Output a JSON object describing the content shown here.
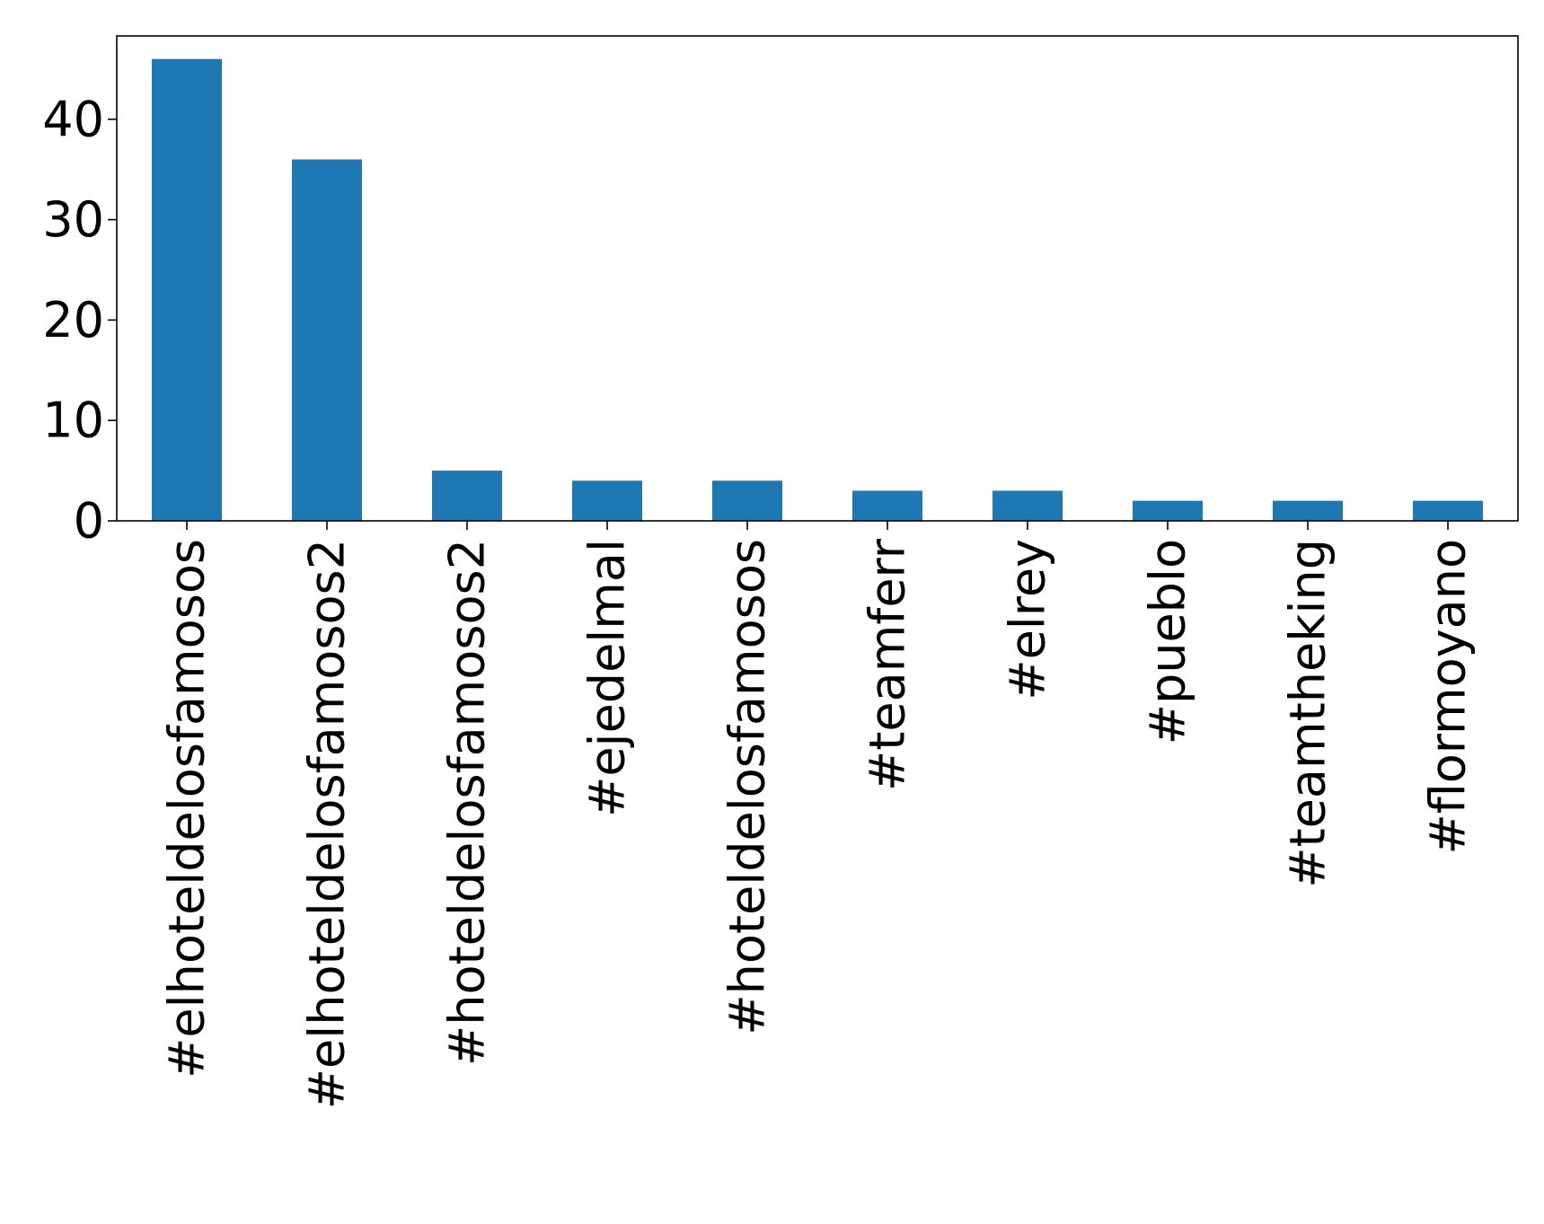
{
  "chart_data": {
    "type": "bar",
    "title": "",
    "xlabel": "",
    "ylabel": "",
    "categories": [
      "#elhoteldelosfamosos",
      "#elhoteldelosfamosos2",
      "#hoteldelosfamosos2",
      "#ejedelmal",
      "#hoteldelosfamosos",
      "#teamferr",
      "#elrey",
      "#pueblo",
      "#teamtheking",
      "#flormoyano"
    ],
    "values": [
      46,
      36,
      5,
      4,
      4,
      3,
      3,
      2,
      2,
      2
    ],
    "ylim": [
      0,
      48.3
    ],
    "yticks": [
      0,
      10,
      20,
      30,
      40
    ],
    "ytick_labels": [
      "0",
      "10",
      "20",
      "30",
      "40"
    ],
    "bar_color": "#1f77b4",
    "grid": false,
    "legend": "none"
  }
}
